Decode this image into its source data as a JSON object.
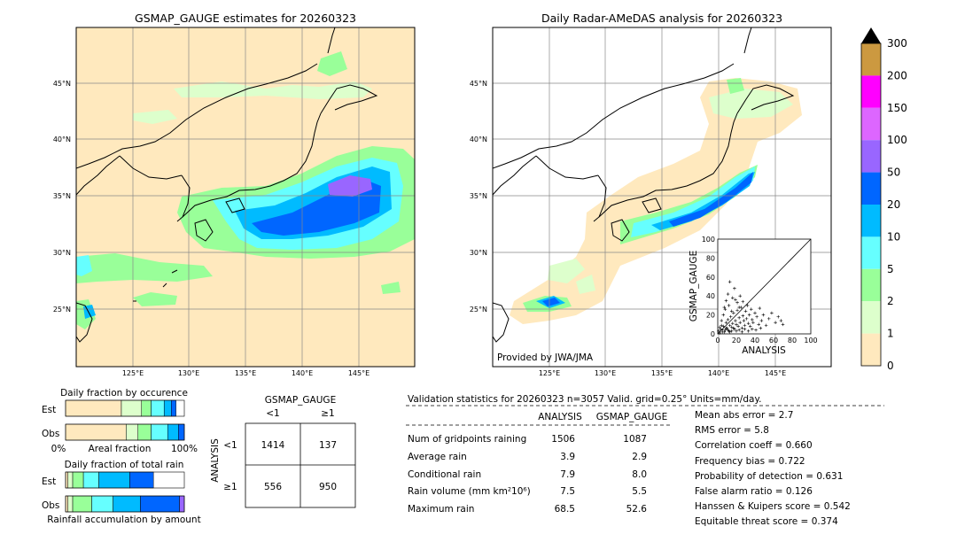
{
  "maps": {
    "left_title": "GSMAP_GAUGE estimates for 20260323",
    "right_title": "Daily Radar-AMeDAS analysis for 20260323",
    "credit": "Provided by JWA/JMA",
    "lat_labels": [
      "45°N",
      "40°N",
      "35°N",
      "30°N",
      "25°N"
    ],
    "lon_labels": [
      "125°E",
      "130°E",
      "135°E",
      "140°E",
      "145°E"
    ]
  },
  "colorbar": {
    "labels": [
      "300",
      "200",
      "150",
      "100",
      "50",
      "20",
      "10",
      "5",
      "2",
      "1",
      "0"
    ],
    "colors": [
      "#cc9940",
      "#ff00ff",
      "#dd66ff",
      "#9966ff",
      "#0066ff",
      "#00bbff",
      "#66ffff",
      "#99ff99",
      "#ddffcc",
      "#ffe9be"
    ]
  },
  "fraction_charts": {
    "occurrence_title": "Daily fraction by occurence",
    "amount_title": "Daily fraction of total rain",
    "amount_xlabel": "Rainfall accumulation by amount",
    "est_label": "Est",
    "obs_label": "Obs",
    "x_left": "0%",
    "x_mid": "Areal fraction",
    "x_right": "100%"
  },
  "contingency": {
    "col_title": "GSMAP_GAUGE",
    "row_title": "ANALYSIS",
    "col_lt1": "<1",
    "col_ge1": "≥1",
    "row_lt1": "<1",
    "row_ge1": "≥1",
    "c11": "1414",
    "c12": "137",
    "c21": "556",
    "c22": "950"
  },
  "validation": {
    "header": "Validation statistics for 20260323  n=3057 Valid. grid=0.25° Units=mm/day.",
    "col_analysis": "ANALYSIS",
    "col_gsmap": "GSMAP_GAUGE",
    "rows": [
      {
        "label": "Num of gridpoints raining",
        "analysis": "1506",
        "gsmap": "1087"
      },
      {
        "label": "Average rain",
        "analysis": "3.9",
        "gsmap": "2.9"
      },
      {
        "label": "Conditional rain",
        "analysis": "7.9",
        "gsmap": "8.0"
      },
      {
        "label": "Rain volume (mm km²10⁶)",
        "analysis": "7.5",
        "gsmap": "5.5"
      },
      {
        "label": "Maximum rain",
        "analysis": "68.5",
        "gsmap": "52.6"
      }
    ],
    "scores": [
      "Mean abs error =    2.7",
      "RMS error =    5.8",
      "Correlation coeff =  0.660",
      "Frequency bias =  0.722",
      "Probability of detection =  0.631",
      "False alarm ratio =  0.126",
      "Hanssen & Kuipers score =  0.542",
      "Equitable threat score =  0.374"
    ]
  },
  "chart_data": [
    {
      "type": "scatter",
      "xlabel": "ANALYSIS",
      "ylabel": "GSMAP_GAUGE",
      "xlim": [
        0,
        100
      ],
      "ylim": [
        0,
        100
      ],
      "xticks": [
        "0",
        "20",
        "40",
        "60",
        "80",
        "100"
      ],
      "yticks": [
        "0",
        "20",
        "40",
        "60",
        "80",
        "100"
      ],
      "points": [
        [
          2,
          1
        ],
        [
          3,
          5
        ],
        [
          5,
          2
        ],
        [
          6,
          8
        ],
        [
          8,
          4
        ],
        [
          9,
          12
        ],
        [
          10,
          6
        ],
        [
          11,
          15
        ],
        [
          12,
          3
        ],
        [
          13,
          9
        ],
        [
          14,
          18
        ],
        [
          15,
          7
        ],
        [
          16,
          11
        ],
        [
          17,
          22
        ],
        [
          18,
          5
        ],
        [
          19,
          14
        ],
        [
          20,
          10
        ],
        [
          21,
          25
        ],
        [
          22,
          8
        ],
        [
          23,
          17
        ],
        [
          24,
          12
        ],
        [
          25,
          28
        ],
        [
          26,
          6
        ],
        [
          27,
          19
        ],
        [
          28,
          14
        ],
        [
          29,
          9
        ],
        [
          30,
          24
        ],
        [
          31,
          16
        ],
        [
          32,
          30
        ],
        [
          33,
          11
        ],
        [
          34,
          20
        ],
        [
          35,
          8
        ],
        [
          36,
          26
        ],
        [
          37,
          15
        ],
        [
          38,
          12
        ],
        [
          40,
          22
        ],
        [
          42,
          18
        ],
        [
          44,
          10
        ],
        [
          45,
          27
        ],
        [
          47,
          14
        ],
        [
          49,
          20
        ],
        [
          52,
          9
        ],
        [
          55,
          16
        ],
        [
          58,
          22
        ],
        [
          62,
          12
        ],
        [
          65,
          18
        ],
        [
          68,
          14
        ],
        [
          70,
          10
        ],
        [
          4,
          14
        ],
        [
          6,
          20
        ],
        [
          7,
          28
        ],
        [
          9,
          35
        ],
        [
          11,
          42
        ],
        [
          13,
          55
        ],
        [
          16,
          38
        ],
        [
          18,
          48
        ],
        [
          21,
          33
        ],
        [
          24,
          40
        ],
        [
          8,
          26
        ],
        [
          12,
          30
        ],
        [
          15,
          24
        ],
        [
          19,
          36
        ],
        [
          23,
          28
        ],
        [
          27,
          34
        ],
        [
          1,
          3
        ],
        [
          2,
          7
        ],
        [
          4,
          9
        ],
        [
          5,
          4
        ],
        [
          7,
          2
        ],
        [
          9,
          6
        ],
        [
          11,
          4
        ],
        [
          13,
          2
        ],
        [
          15,
          3
        ],
        [
          17,
          6
        ],
        [
          20,
          3
        ],
        [
          23,
          4
        ],
        [
          26,
          2
        ],
        [
          29,
          5
        ],
        [
          33,
          3
        ],
        [
          37,
          5
        ],
        [
          41,
          4
        ],
        [
          46,
          6
        ]
      ]
    },
    {
      "type": "bar",
      "title": "Daily fraction by occurence",
      "categories": [
        "Est",
        "Obs"
      ],
      "series_colors": [
        "#ffe9be",
        "#ddffcc",
        "#99ff99",
        "#66ffff",
        "#00bbff",
        "#0066ff"
      ],
      "values": [
        [
          0.47,
          0.17,
          0.08,
          0.11,
          0.06,
          0.04
        ],
        [
          0.51,
          0.1,
          0.11,
          0.14,
          0.09,
          0.05
        ]
      ]
    },
    {
      "type": "bar",
      "title": "Daily fraction of total rain",
      "categories": [
        "Est",
        "Obs"
      ],
      "series_colors": [
        "#ffe9be",
        "#ddffcc",
        "#99ff99",
        "#66ffff",
        "#00bbff",
        "#0066ff",
        "#9966ff"
      ],
      "values": [
        [
          0.02,
          0.04,
          0.09,
          0.13,
          0.26,
          0.2,
          0.0
        ],
        [
          0.02,
          0.04,
          0.16,
          0.18,
          0.23,
          0.33,
          0.04
        ]
      ]
    }
  ]
}
